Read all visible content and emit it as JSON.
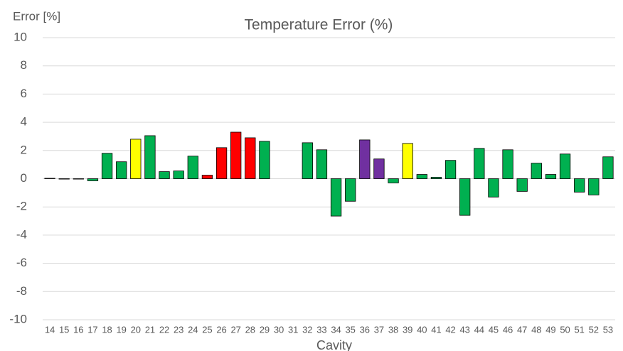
{
  "chart_data": {
    "type": "bar",
    "title": "Temperature Error (%)",
    "y_label": "Error [%]",
    "x_label": "Cavity",
    "categories": [
      "14",
      "15",
      "16",
      "17",
      "18",
      "19",
      "20",
      "21",
      "22",
      "23",
      "24",
      "25",
      "26",
      "27",
      "28",
      "29",
      "30",
      "31",
      "32",
      "33",
      "34",
      "35",
      "36",
      "37",
      "38",
      "39",
      "40",
      "41",
      "42",
      "43",
      "44",
      "45",
      "46",
      "47",
      "48",
      "49",
      "50",
      "51",
      "52",
      "53"
    ],
    "values": [
      0.03,
      -0.03,
      -0.03,
      -0.15,
      1.8,
      1.2,
      2.8,
      3.05,
      0.5,
      0.55,
      1.6,
      0.25,
      2.2,
      3.3,
      2.9,
      2.65,
      null,
      null,
      2.55,
      2.05,
      -2.65,
      -1.6,
      2.75,
      1.4,
      -0.3,
      2.5,
      0.3,
      0.1,
      1.3,
      -2.6,
      2.15,
      -1.3,
      2.05,
      -0.9,
      1.1,
      0.3,
      1.75,
      -0.95,
      -1.15,
      1.55
    ],
    "colors": [
      "#00b050",
      "#00b050",
      "#00b050",
      "#00b050",
      "#00b050",
      "#00b050",
      "#ffff00",
      "#00b050",
      "#00b050",
      "#00b050",
      "#00b050",
      "#ff0000",
      "#ff0000",
      "#ff0000",
      "#ff0000",
      "#00b050",
      null,
      null,
      "#00b050",
      "#00b050",
      "#00b050",
      "#00b050",
      "#7030a0",
      "#7030a0",
      "#00b050",
      "#ffff00",
      "#00b050",
      "#00b050",
      "#00b050",
      "#00b050",
      "#00b050",
      "#00b050",
      "#00b050",
      "#00b050",
      "#00b050",
      "#00b050",
      "#00b050",
      "#00b050",
      "#00b050",
      "#00b050"
    ],
    "ylim": [
      -10,
      10
    ],
    "yticks": [
      -10,
      -8,
      -6,
      -4,
      -2,
      0,
      2,
      4,
      6,
      8,
      10
    ],
    "grid": true
  }
}
